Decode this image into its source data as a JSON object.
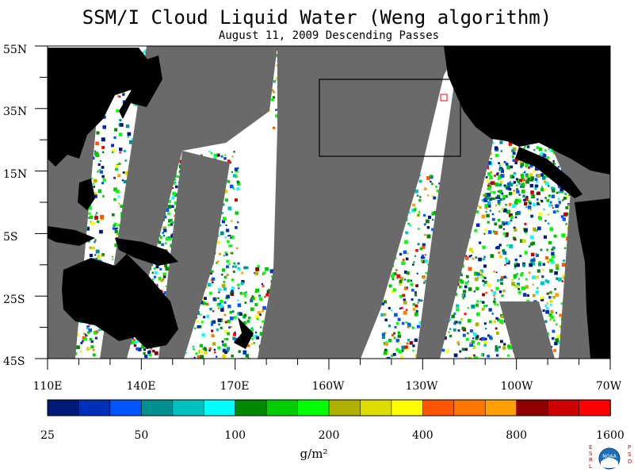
{
  "title": "SSM/I Cloud Liquid Water (Weng algorithm)",
  "subtitle": "August 11, 2009  Descending Passes",
  "lat_labels": [
    "55N",
    "35N",
    "15N",
    "5S",
    "25S",
    "45S"
  ],
  "lon_labels": [
    "110E",
    "140E",
    "170E",
    "160W",
    "130W",
    "100W",
    "70W"
  ],
  "colorbar": {
    "labels": [
      "25",
      "50",
      "100",
      "200",
      "400",
      "800",
      "1600"
    ],
    "unit": "g/m²",
    "colors": [
      "#001a7a",
      "#0030b8",
      "#0055ff",
      "#009090",
      "#00c0c0",
      "#00ffff",
      "#008800",
      "#00cc00",
      "#00ff00",
      "#b0b000",
      "#dddd00",
      "#ffff00",
      "#ff5500",
      "#ff7700",
      "#ffa000",
      "#900000",
      "#cc0000",
      "#ff0000"
    ]
  },
  "colors": {
    "land": "#000000",
    "no_data": "#6a6a6a",
    "clear": "#ffffff",
    "box": "#000000",
    "marker": "#ff0000"
  },
  "logo": {
    "left_letters": "ESRL",
    "right_letters": "PSD",
    "center": "NOAA"
  }
}
